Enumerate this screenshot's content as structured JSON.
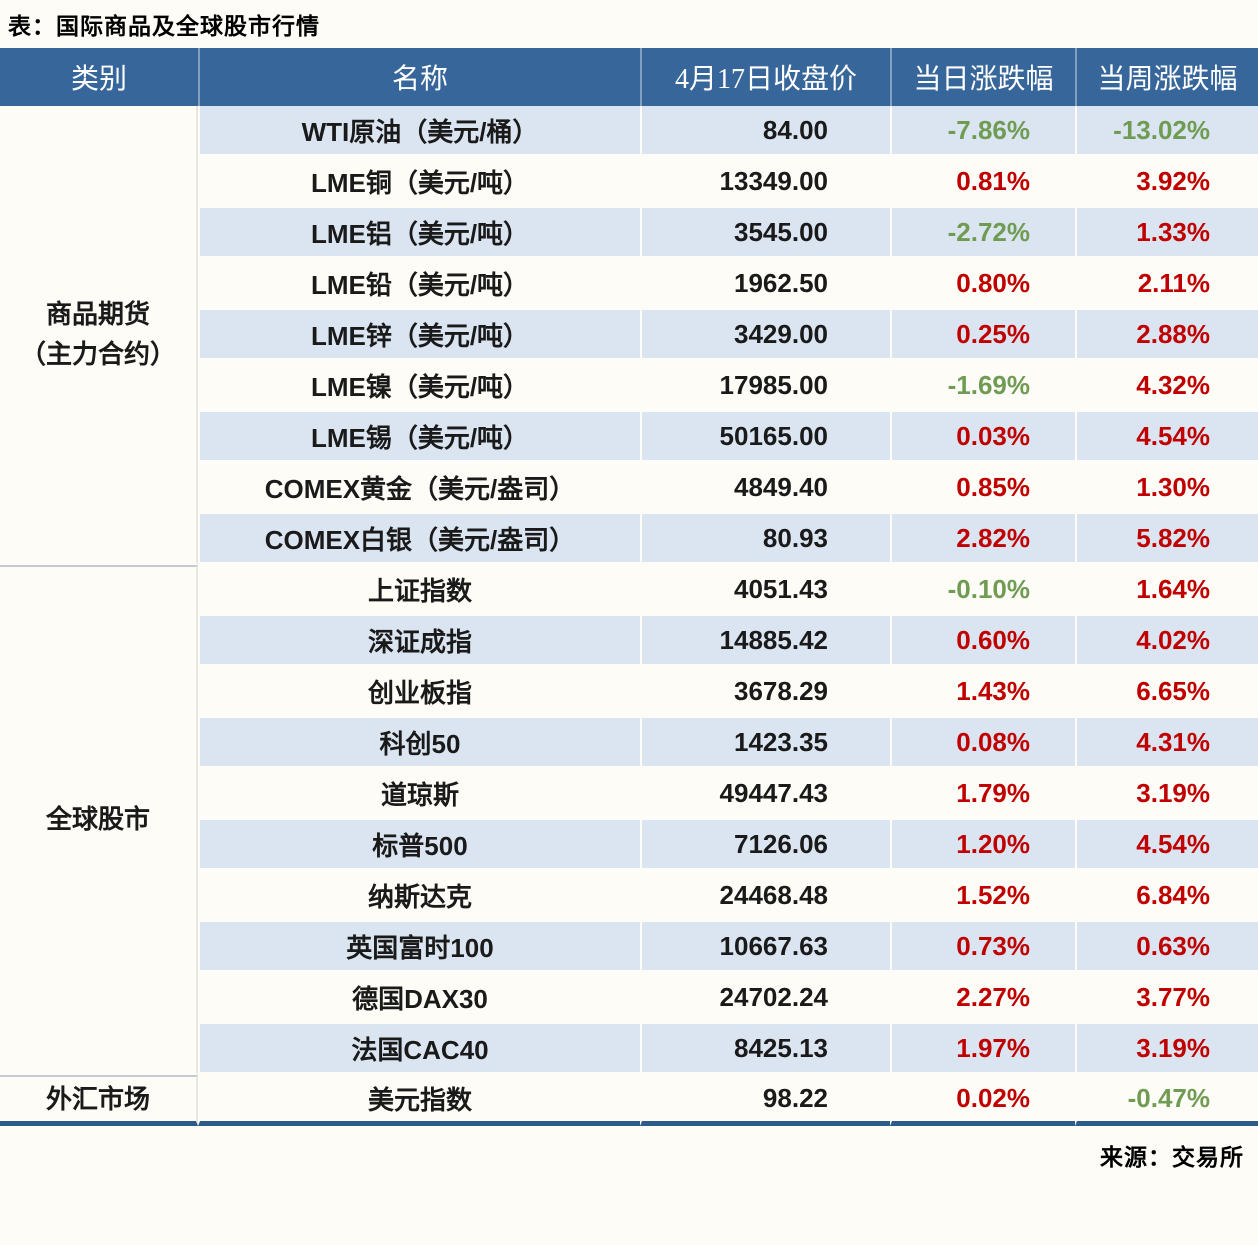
{
  "page": {
    "title": "表：国际商品及全球股市行情",
    "source": "来源：交易所"
  },
  "colors": {
    "header_bg": "#37669b",
    "header_text": "#ffffff",
    "stripe": "#dbe5f1",
    "page_bg": "#fdfcf6",
    "up_red": "#c00000",
    "down_green": "#6f9c52",
    "bottom_border": "#2e5c8a",
    "group_sep": "#c3cad3",
    "text": "#1a1a1a"
  },
  "table": {
    "headers": {
      "category": "类别",
      "name": "名称",
      "close": "4月17日收盘价",
      "daily": "当日涨跌幅",
      "weekly": "当周涨跌幅"
    },
    "groups": [
      {
        "label": "商品期货\n（主力合约）"
      },
      {
        "label": "全球股市"
      },
      {
        "label": "外汇市场"
      }
    ],
    "rows": [
      {
        "name": "WTI原油（美元/桶）",
        "close": "84.00",
        "daily": "-7.86%",
        "weekly": "-13.02%"
      },
      {
        "name": "LME铜（美元/吨）",
        "close": "13349.00",
        "daily": "0.81%",
        "weekly": "3.92%"
      },
      {
        "name": "LME铝（美元/吨）",
        "close": "3545.00",
        "daily": "-2.72%",
        "weekly": "1.33%"
      },
      {
        "name": "LME铅（美元/吨）",
        "close": "1962.50",
        "daily": "0.80%",
        "weekly": "2.11%"
      },
      {
        "name": "LME锌（美元/吨）",
        "close": "3429.00",
        "daily": "0.25%",
        "weekly": "2.88%"
      },
      {
        "name": "LME镍（美元/吨）",
        "close": "17985.00",
        "daily": "-1.69%",
        "weekly": "4.32%"
      },
      {
        "name": "LME锡（美元/吨）",
        "close": "50165.00",
        "daily": "0.03%",
        "weekly": "4.54%"
      },
      {
        "name": "COMEX黄金（美元/盎司）",
        "close": "4849.40",
        "daily": "0.85%",
        "weekly": "1.30%"
      },
      {
        "name": "COMEX白银（美元/盎司）",
        "close": "80.93",
        "daily": "2.82%",
        "weekly": "5.82%"
      },
      {
        "name": "上证指数",
        "close": "4051.43",
        "daily": "-0.10%",
        "weekly": "1.64%"
      },
      {
        "name": "深证成指",
        "close": "14885.42",
        "daily": "0.60%",
        "weekly": "4.02%"
      },
      {
        "name": "创业板指",
        "close": "3678.29",
        "daily": "1.43%",
        "weekly": "6.65%"
      },
      {
        "name": "科创50",
        "close": "1423.35",
        "daily": "0.08%",
        "weekly": "4.31%"
      },
      {
        "name": "道琼斯",
        "close": "49447.43",
        "daily": "1.79%",
        "weekly": "3.19%"
      },
      {
        "name": "标普500",
        "close": "7126.06",
        "daily": "1.20%",
        "weekly": "4.54%"
      },
      {
        "name": "纳斯达克",
        "close": "24468.48",
        "daily": "1.52%",
        "weekly": "6.84%"
      },
      {
        "name": "英国富时100",
        "close": "10667.63",
        "daily": "0.73%",
        "weekly": "0.63%"
      },
      {
        "name": "德国DAX30",
        "close": "24702.24",
        "daily": "2.27%",
        "weekly": "3.77%"
      },
      {
        "name": "法国CAC40",
        "close": "8425.13",
        "daily": "1.97%",
        "weekly": "3.19%"
      },
      {
        "name": "美元指数",
        "close": "98.22",
        "daily": "0.02%",
        "weekly": "-0.47%"
      }
    ]
  },
  "chart_data": {
    "type": "table",
    "title": "表：国际商品及全球股市行情",
    "columns": [
      "类别",
      "名称",
      "4月17日收盘价",
      "当日涨跌幅",
      "当周涨跌幅"
    ],
    "rows": [
      [
        "商品期货（主力合约）",
        "WTI原油（美元/桶）",
        84.0,
        -7.86,
        -13.02
      ],
      [
        "商品期货（主力合约）",
        "LME铜（美元/吨）",
        13349.0,
        0.81,
        3.92
      ],
      [
        "商品期货（主力合约）",
        "LME铝（美元/吨）",
        3545.0,
        -2.72,
        1.33
      ],
      [
        "商品期货（主力合约）",
        "LME铅（美元/吨）",
        1962.5,
        0.8,
        2.11
      ],
      [
        "商品期货（主力合约）",
        "LME锌（美元/吨）",
        3429.0,
        0.25,
        2.88
      ],
      [
        "商品期货（主力合约）",
        "LME镍（美元/吨）",
        17985.0,
        -1.69,
        4.32
      ],
      [
        "商品期货（主力合约）",
        "LME锡（美元/吨）",
        50165.0,
        0.03,
        4.54
      ],
      [
        "商品期货（主力合约）",
        "COMEX黄金（美元/盎司）",
        4849.4,
        0.85,
        1.3
      ],
      [
        "商品期货（主力合约）",
        "COMEX白银（美元/盎司）",
        80.93,
        2.82,
        5.82
      ],
      [
        "全球股市",
        "上证指数",
        4051.43,
        -0.1,
        1.64
      ],
      [
        "全球股市",
        "深证成指",
        14885.42,
        0.6,
        4.02
      ],
      [
        "全球股市",
        "创业板指",
        3678.29,
        1.43,
        6.65
      ],
      [
        "全球股市",
        "科创50",
        1423.35,
        0.08,
        4.31
      ],
      [
        "全球股市",
        "道琼斯",
        49447.43,
        1.79,
        3.19
      ],
      [
        "全球股市",
        "标普500",
        7126.06,
        1.2,
        4.54
      ],
      [
        "全球股市",
        "纳斯达克",
        24468.48,
        1.52,
        6.84
      ],
      [
        "全球股市",
        "英国富时100",
        10667.63,
        0.73,
        0.63
      ],
      [
        "全球股市",
        "德国DAX30",
        24702.24,
        2.27,
        3.77
      ],
      [
        "全球股市",
        "法国CAC40",
        8425.13,
        1.97,
        3.19
      ],
      [
        "外汇市场",
        "美元指数",
        98.22,
        0.02,
        -0.47
      ]
    ],
    "units": {
      "当日涨跌幅": "%",
      "当周涨跌幅": "%"
    },
    "layout_hints": {
      "negative_color": "#6f9c52",
      "positive_color": "#c00000",
      "striped_rows": true,
      "source_note": "来源：交易所"
    }
  }
}
